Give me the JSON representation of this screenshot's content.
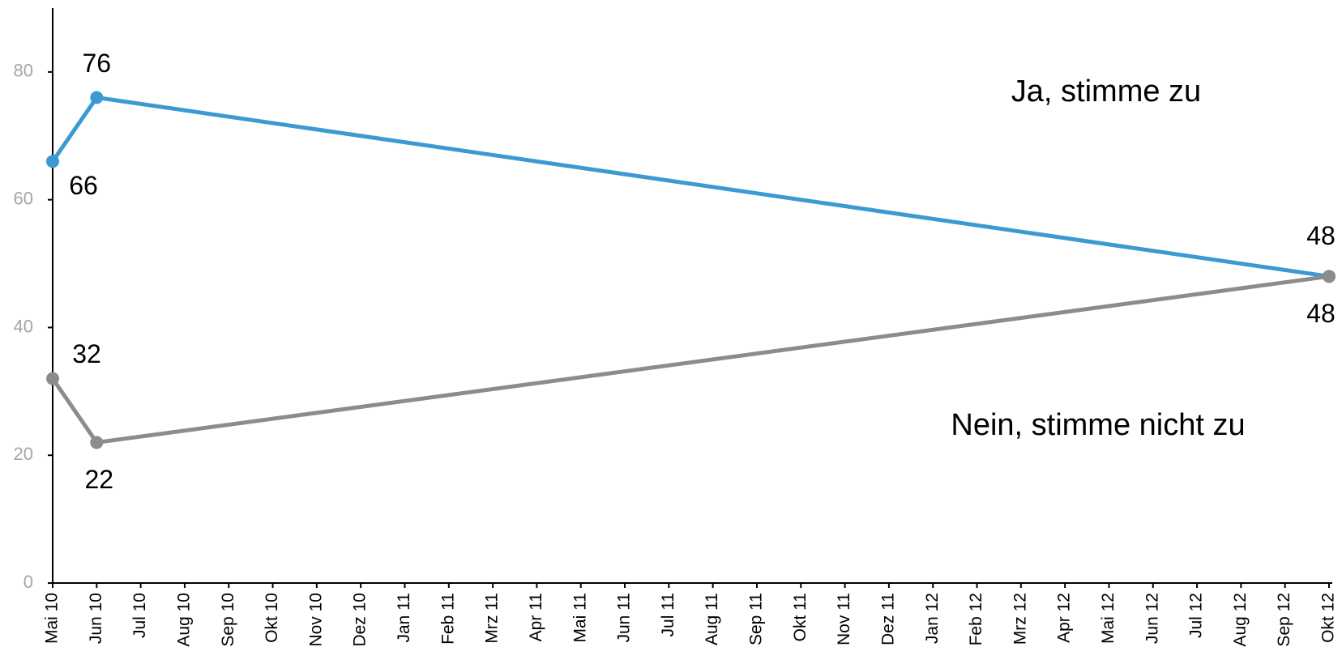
{
  "chart_data": {
    "type": "line",
    "categories": [
      "Mai 10",
      "Jun 10",
      "Jul 10",
      "Aug 10",
      "Sep 10",
      "Okt 10",
      "Nov 10",
      "Dez 10",
      "Jan 11",
      "Feb 11",
      "Mrz 11",
      "Apr 11",
      "Mai 11",
      "Jun 11",
      "Jul 11",
      "Aug 11",
      "Sep 11",
      "Okt 11",
      "Nov 11",
      "Dez 11",
      "Jan 12",
      "Feb 12",
      "Mrz 12",
      "Apr 12",
      "Mai 12",
      "Jun 12",
      "Jul 12",
      "Aug 12",
      "Sep 12",
      "Okt 12"
    ],
    "y_ticks": [
      0,
      20,
      40,
      60,
      80
    ],
    "ylim": [
      0,
      90
    ],
    "grid": false,
    "series": [
      {
        "name": "Ja, stimme zu",
        "color": "#3b9bd1",
        "points": [
          {
            "x": "Mai 10",
            "y": 66
          },
          {
            "x": "Jun 10",
            "y": 76
          },
          {
            "x": "Okt 12",
            "y": 48
          }
        ]
      },
      {
        "name": "Nein, stimme nicht zu",
        "color": "#8c8c8c",
        "points": [
          {
            "x": "Mai 10",
            "y": 32
          },
          {
            "x": "Jun 10",
            "y": 22
          },
          {
            "x": "Okt 12",
            "y": 48
          }
        ]
      }
    ]
  }
}
